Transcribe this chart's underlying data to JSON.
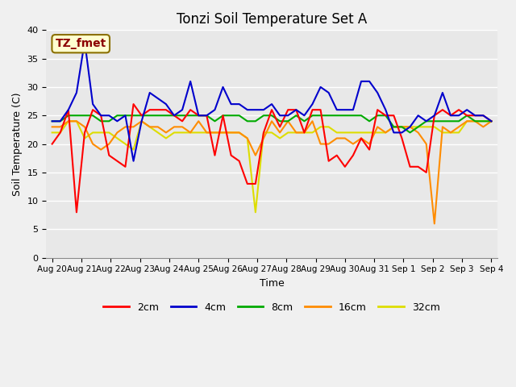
{
  "title": "Tonzi Soil Temperature Set A",
  "xlabel": "Time",
  "ylabel": "Soil Temperature (C)",
  "annotation": "TZ_fmet",
  "annotation_color": "#8B0000",
  "annotation_bg": "#FFFFD0",
  "annotation_border": "#8B7000",
  "ylim": [
    0,
    40
  ],
  "yticks": [
    0,
    5,
    10,
    15,
    20,
    25,
    30,
    35,
    40
  ],
  "background_color": "#E8E8E8",
  "fig_bg": "#F0F0F0",
  "series_colors": {
    "2cm": "#FF0000",
    "4cm": "#0000CC",
    "8cm": "#00AA00",
    "16cm": "#FF8C00",
    "32cm": "#DDDD00"
  },
  "xtick_labels": [
    "Aug 20",
    "Aug 21",
    "Aug 22",
    "Aug 23",
    "Aug 24",
    "Aug 25",
    "Aug 26",
    "Aug 27",
    "Aug 28",
    "Aug 29",
    "Aug 30",
    "Aug 31",
    "Sep 1",
    "Sep 2",
    "Sep 3",
    "Sep 4"
  ],
  "data": {
    "2cm": [
      20,
      22,
      26,
      8,
      22,
      26,
      25,
      18,
      17,
      16,
      27,
      25,
      26,
      26,
      26,
      25,
      24,
      26,
      25,
      25,
      18,
      25,
      18,
      17,
      13,
      13,
      22,
      26,
      23,
      26,
      26,
      22,
      26,
      26,
      17,
      18,
      16,
      18,
      21,
      19,
      26,
      25,
      25,
      21,
      16,
      16,
      15,
      25,
      26,
      25,
      26,
      25,
      25,
      25,
      24
    ],
    "4cm": [
      24,
      24,
      26,
      29,
      38,
      27,
      25,
      25,
      24,
      25,
      17,
      24,
      29,
      28,
      27,
      25,
      26,
      31,
      25,
      25,
      26,
      30,
      27,
      27,
      26,
      26,
      26,
      27,
      25,
      25,
      26,
      25,
      27,
      30,
      29,
      26,
      26,
      26,
      31,
      31,
      29,
      26,
      22,
      22,
      23,
      25,
      24,
      25,
      29,
      25,
      25,
      26,
      25,
      25,
      24
    ],
    "8cm": [
      24,
      24,
      25,
      25,
      25,
      25,
      24,
      24,
      25,
      25,
      25,
      25,
      25,
      25,
      25,
      25,
      25,
      25,
      25,
      25,
      24,
      25,
      25,
      25,
      24,
      24,
      25,
      25,
      24,
      24,
      25,
      24,
      25,
      25,
      25,
      25,
      25,
      25,
      25,
      24,
      25,
      25,
      23,
      23,
      22,
      23,
      24,
      24,
      24,
      24,
      24,
      25,
      24,
      24,
      24
    ],
    "16cm": [
      23,
      23,
      24,
      24,
      23,
      20,
      19,
      20,
      22,
      23,
      23,
      24,
      23,
      23,
      22,
      23,
      23,
      22,
      24,
      22,
      22,
      22,
      22,
      22,
      21,
      18,
      21,
      24,
      22,
      24,
      22,
      22,
      24,
      20,
      20,
      21,
      21,
      20,
      21,
      20,
      23,
      22,
      23,
      23,
      23,
      22,
      20,
      6,
      23,
      22,
      23,
      24,
      24,
      23,
      24
    ],
    "32cm": [
      22,
      22,
      24,
      24,
      21,
      22,
      22,
      22,
      21,
      20,
      19,
      24,
      23,
      22,
      21,
      22,
      22,
      22,
      22,
      22,
      22,
      22,
      22,
      22,
      21,
      8,
      22,
      22,
      21,
      22,
      22,
      22,
      22,
      23,
      23,
      22,
      22,
      22,
      22,
      22,
      22,
      22,
      23,
      23,
      23,
      23,
      23,
      23,
      22,
      22,
      22,
      24,
      24,
      24,
      24
    ]
  }
}
